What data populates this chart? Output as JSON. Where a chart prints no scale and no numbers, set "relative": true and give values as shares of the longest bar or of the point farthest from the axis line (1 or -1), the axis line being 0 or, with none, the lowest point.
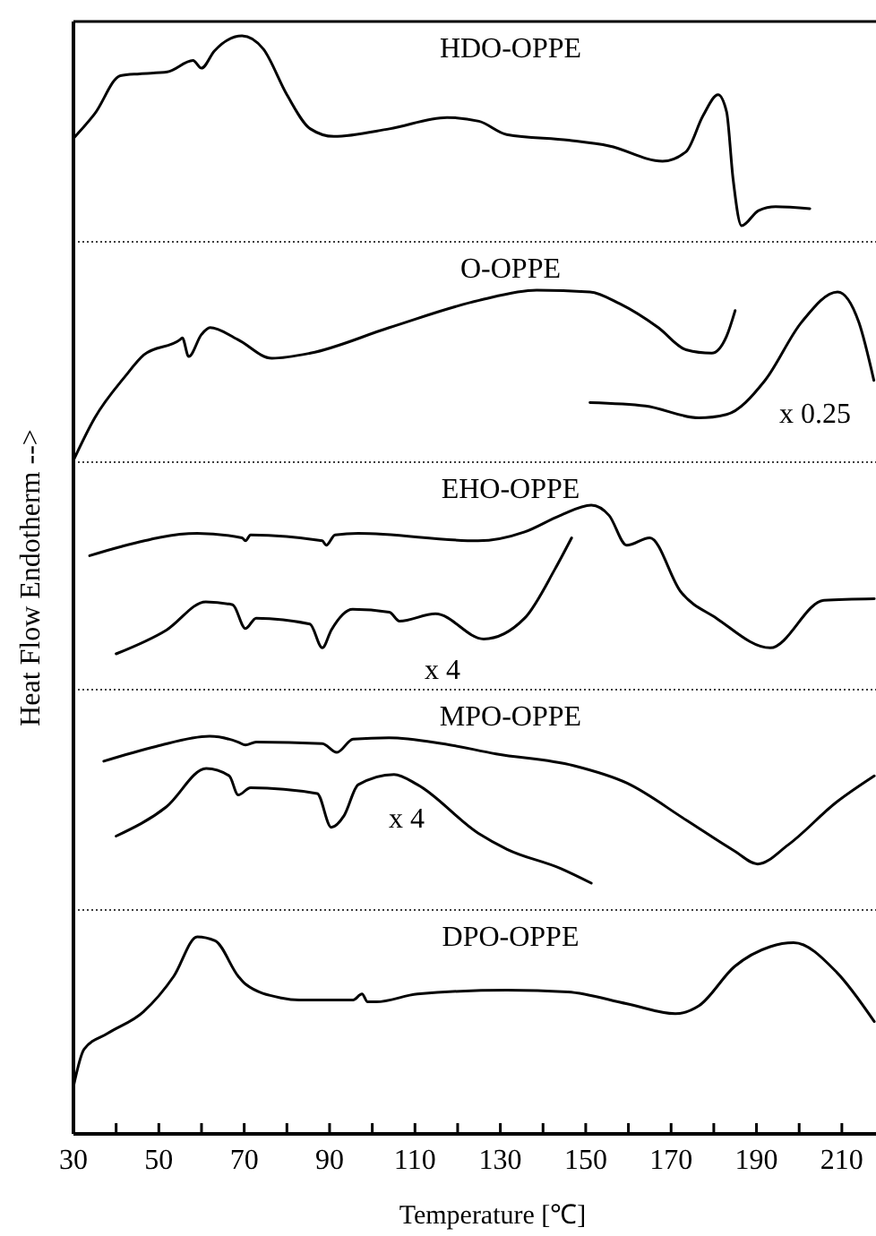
{
  "chart_data": [
    {
      "type": "line",
      "title": "HDO-OPPE",
      "relative": true,
      "xlim": [
        30,
        218
      ],
      "tick_labels": false,
      "series": [
        {
          "color": "#000000",
          "x": [
            30,
            35,
            41,
            45.5,
            52,
            58,
            60,
            63,
            69.5,
            74.5,
            80,
            85.5,
            91,
            104,
            117.5,
            125,
            131.5,
            146,
            155.5,
            168,
            173.5,
            177.5,
            181,
            183,
            184.5,
            186.5,
            190.5,
            194.5,
            202.5
          ],
          "values": [
            0.46,
            0.59,
            0.79,
            0.8,
            0.81,
            0.87,
            0.83,
            0.92,
            1,
            0.93,
            0.69,
            0.51,
            0.47,
            0.51,
            0.57,
            0.55,
            0.48,
            0.45,
            0.42,
            0.34,
            0.39,
            0.58,
            0.69,
            0.6,
            0.25,
            0,
            0.08,
            0.1,
            0.09
          ]
        }
      ]
    },
    {
      "type": "line",
      "title": "O-OPPE",
      "relative": true,
      "xlim": [
        30,
        218
      ],
      "tick_labels": false,
      "annotations": [
        "x 0.25"
      ],
      "series": [
        {
          "color": "#000000",
          "x": [
            30,
            35,
            42,
            46.5,
            55,
            55.5,
            57,
            60,
            62,
            68.5,
            76.5,
            85.5,
            104,
            125,
            138.5,
            151,
            158,
            167,
            173.5,
            179.5,
            183,
            185
          ],
          "values": [
            0,
            0.25,
            0.49,
            0.62,
            0.71,
            0.72,
            0.61,
            0.74,
            0.78,
            0.71,
            0.6,
            0.63,
            0.78,
            0.94,
            1,
            0.99,
            0.92,
            0.78,
            0.65,
            0.63,
            0.73,
            0.88
          ]
        },
        {
          "color": "#000000",
          "x": [
            151,
            164,
            176.5,
            183,
            192,
            200.5,
            209,
            214,
            217.5
          ],
          "values": [
            0.34,
            0.32,
            0.25,
            0.27,
            0.47,
            0.81,
            0.99,
            0.81,
            0.47
          ]
        }
      ]
    },
    {
      "type": "line",
      "title": "EHO-OPPE",
      "relative": true,
      "xlim": [
        30,
        218
      ],
      "tick_labels": false,
      "ylabel": "Heat Flow Endotherm -->",
      "annotations": [
        "x 4"
      ],
      "series": [
        {
          "color": "#000000",
          "x": [
            33.8,
            41,
            59,
            69.5,
            70.3,
            71.5,
            88.3,
            89.2,
            91.3,
            96.7,
            124.8,
            135.7,
            144,
            151.3,
            155.5,
            159.6,
            165,
            172.2,
            180.6,
            193.2,
            205.8,
            217.6
          ],
          "values": [
            0.66,
            0.72,
            0.81,
            0.78,
            0.76,
            0.8,
            0.76,
            0.73,
            0.8,
            0.81,
            0.76,
            0.82,
            0.93,
            1,
            0.93,
            0.73,
            0.78,
            0.42,
            0.24,
            0.04,
            0.36,
            0.37
          ]
        },
        {
          "color": "#000000",
          "x": [
            40,
            51.8,
            61,
            67.3,
            70.3,
            72.8,
            85.4,
            88.3,
            90.4,
            95.4,
            104,
            106.4,
            114.8,
            126.1,
            135.7,
            142.8,
            146.7
          ],
          "values": [
            0,
            0.16,
            0.35,
            0.33,
            0.17,
            0.24,
            0.2,
            0.04,
            0.16,
            0.3,
            0.28,
            0.22,
            0.27,
            0.1,
            0.24,
            0.57,
            0.78
          ]
        }
      ]
    },
    {
      "type": "line",
      "title": "MPO-OPPE",
      "relative": true,
      "xlim": [
        30,
        218
      ],
      "tick_labels": false,
      "annotations": [
        "x 4"
      ],
      "series": [
        {
          "color": "#000000",
          "x": [
            37.1,
            49.3,
            61.9,
            68.6,
            70.3,
            72.8,
            88.3,
            91.7,
            95.5,
            103.9,
            116.4,
            129,
            147.1,
            159.7,
            173.5,
            184.8,
            190.3,
            197.4,
            208.7,
            217.6
          ],
          "values": [
            0.83,
            0.93,
            1,
            0.96,
            0.94,
            0.96,
            0.95,
            0.89,
            0.98,
            0.99,
            0.95,
            0.88,
            0.8,
            0.68,
            0.43,
            0.22,
            0.13,
            0.26,
            0.55,
            0.73
          ]
        },
        {
          "color": "#000000",
          "x": [
            40,
            51.8,
            61.1,
            66.5,
            68.6,
            71.5,
            87.1,
            90.4,
            93.4,
            96.7,
            105.1,
            110.6,
            124.8,
            131.6,
            144.1,
            151.3
          ],
          "values": [
            0.32,
            0.52,
            0.78,
            0.73,
            0.6,
            0.65,
            0.61,
            0.38,
            0.46,
            0.67,
            0.74,
            0.67,
            0.34,
            0.23,
            0.1,
            0
          ]
        }
      ]
    },
    {
      "type": "line",
      "title": "DPO-OPPE",
      "relative": true,
      "xlim": [
        30,
        218
      ],
      "tick_labels": "x",
      "xlabel": "Temperature [℃]",
      "xticks": [
        30,
        {
          "value": 40,
          "label": null
        },
        50,
        {
          "value": 60,
          "label": null
        },
        70,
        {
          "value": 80,
          "label": null
        },
        90,
        {
          "value": 100,
          "label": null
        },
        110,
        {
          "value": 120,
          "label": null
        },
        130,
        {
          "value": 140,
          "label": null
        },
        150,
        {
          "value": 160,
          "label": null
        },
        170,
        {
          "value": 180,
          "label": null
        },
        190,
        {
          "value": 200,
          "label": null
        },
        210
      ],
      "series": [
        {
          "color": "#000000",
          "x": [
            30,
            32.5,
            38,
            46.4,
            53.5,
            59,
            63.2,
            68.6,
            70.3,
            78.7,
            82.9,
            95.5,
            97.6,
            98.9,
            100.9,
            110.6,
            131.6,
            145.8,
            159.7,
            171,
            176.5,
            184.9,
            193.2,
            198.7,
            208.8,
            217.6
          ],
          "values": [
            0.24,
            0.43,
            0.51,
            0.62,
            0.8,
            1,
            0.98,
            0.8,
            0.76,
            0.69,
            0.68,
            0.68,
            0.71,
            0.67,
            0.67,
            0.71,
            0.73,
            0.72,
            0.66,
            0.61,
            0.65,
            0.85,
            0.95,
            0.97,
            0.82,
            0.57
          ]
        }
      ]
    }
  ]
}
